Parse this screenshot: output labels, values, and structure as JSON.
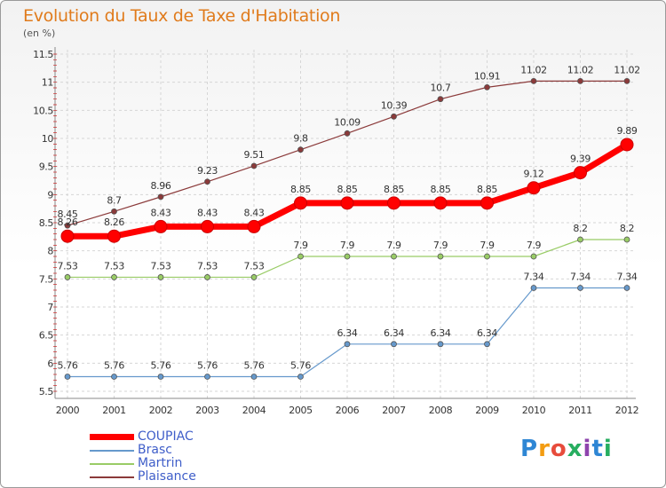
{
  "title": "Evolution du Taux de Taxe d'Habitation",
  "subtitle": "(en %)",
  "logo": {
    "letters": [
      "P",
      "r",
      "o",
      "x",
      "i",
      "t",
      "i"
    ],
    "colors": [
      "#2e86d4",
      "#f39c12",
      "#e74c3c",
      "#27ae60",
      "#8e44ad",
      "#2e86d4",
      "#27ae60"
    ]
  },
  "chart_data": {
    "type": "line",
    "x": [
      "2000",
      "2001",
      "2002",
      "2003",
      "2004",
      "2005",
      "2006",
      "2007",
      "2008",
      "2009",
      "2010",
      "2011",
      "2012"
    ],
    "ylim": [
      5.5,
      11.5
    ],
    "yticks": [
      "5.5",
      "6",
      "6.5",
      "7",
      "7.5",
      "8",
      "8.5",
      "9",
      "9.5",
      "10",
      "10.5",
      "11",
      "11.5"
    ],
    "grid": true,
    "legend_position": "bottom-left",
    "series": [
      {
        "name": "COUPIAC",
        "color": "#ff0000",
        "width": 7,
        "marker_r": 7,
        "values": [
          8.26,
          8.26,
          8.43,
          8.43,
          8.43,
          8.85,
          8.85,
          8.85,
          8.85,
          8.85,
          9.12,
          9.39,
          9.89
        ],
        "labels": [
          "8.26",
          "8.26",
          "8.43",
          "8.43",
          "8.43",
          "8.85",
          "8.85",
          "8.85",
          "8.85",
          "8.85",
          "9.12",
          "9.39",
          "9.89"
        ]
      },
      {
        "name": "Brasc",
        "color": "#6699cc",
        "width": 1.2,
        "marker_r": 3,
        "values": [
          5.76,
          5.76,
          5.76,
          5.76,
          5.76,
          5.76,
          6.34,
          6.34,
          6.34,
          6.34,
          7.34,
          7.34,
          7.34
        ],
        "labels": [
          "5.76",
          "5.76",
          "5.76",
          "5.76",
          "5.76",
          "5.76",
          "6.34",
          "6.34",
          "6.34",
          "6.34",
          "7.34",
          "7.34",
          "7.34"
        ]
      },
      {
        "name": "Martrin",
        "color": "#99cc66",
        "width": 1.2,
        "marker_r": 3,
        "values": [
          7.53,
          7.53,
          7.53,
          7.53,
          7.53,
          7.9,
          7.9,
          7.9,
          7.9,
          7.9,
          7.9,
          8.2,
          8.2
        ],
        "labels": [
          "7.53",
          "7.53",
          "7.53",
          "7.53",
          "7.53",
          "7.9",
          "7.9",
          "7.9",
          "7.9",
          "7.9",
          "7.9",
          "8.2",
          "8.2"
        ]
      },
      {
        "name": "Plaisance",
        "color": "#8b3a3a",
        "width": 1.2,
        "marker_r": 3,
        "values": [
          8.45,
          8.7,
          8.96,
          9.23,
          9.51,
          9.8,
          10.09,
          10.39,
          10.7,
          10.91,
          11.02,
          11.02,
          11.02
        ],
        "labels": [
          "8.45",
          "8.7",
          "8.96",
          "9.23",
          "9.51",
          "9.8",
          "10.09",
          "10.39",
          "10.7",
          "10.91",
          "11.02",
          "11.02",
          "11.02"
        ]
      }
    ]
  }
}
